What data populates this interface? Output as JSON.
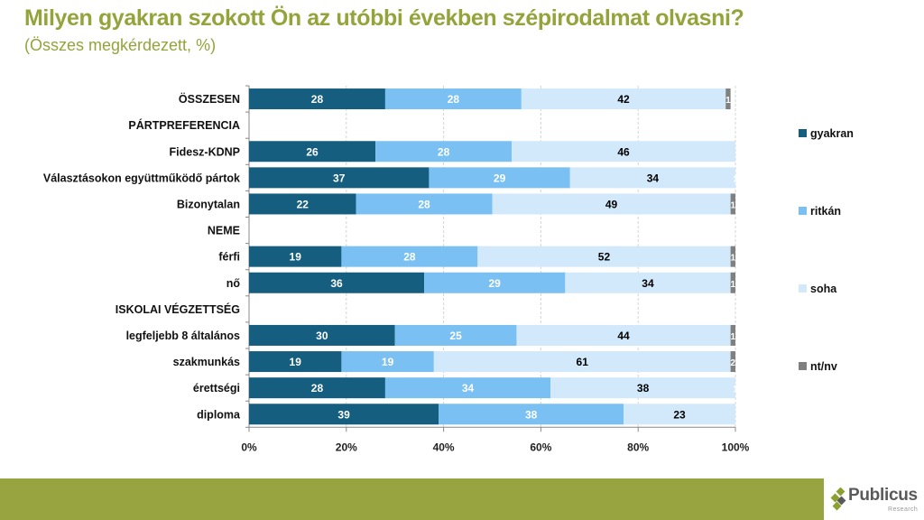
{
  "header": {
    "title": "Milyen gyakran szokott Ön az utóbbi években szépirodalmat olvasni?",
    "subtitle": "(Összes megkérdezett, %)"
  },
  "colors": {
    "title": "#95a33b",
    "footer": "#98a43f",
    "gyakran": "#165e80",
    "ritkan": "#7ac0f2",
    "soha": "#d2e9fb",
    "ntnv": "#808080"
  },
  "chart_data": {
    "type": "bar",
    "orientation": "horizontal",
    "stacked": "percent",
    "title": "Milyen gyakran szokott Ön az utóbbi években szépirodalmat olvasni?",
    "subtitle": "(Összes megkérdezett, %)",
    "xlabel": "",
    "ylabel": "",
    "xlim": [
      0,
      100
    ],
    "xticks": [
      "0%",
      "20%",
      "40%",
      "60%",
      "80%",
      "100%"
    ],
    "grid": "vertical dashed",
    "legend_position": "right",
    "categories": [
      "ÖSSZESEN",
      "PÁRTPREFERENCIA",
      "Fidesz-KDNP",
      "Választásokon együttműködő pártok",
      "Bizonytalan",
      "NEME",
      "férfi",
      "nő",
      "ISKOLAI VÉGZETTSÉG",
      "legfeljebb 8 általános",
      "szakmunkás",
      "érettségi",
      "diploma"
    ],
    "series": [
      {
        "name": "gyakran",
        "color": "#165e80",
        "label_color": "#ffffff",
        "values": [
          28,
          null,
          26,
          37,
          22,
          null,
          19,
          36,
          null,
          30,
          19,
          28,
          39
        ]
      },
      {
        "name": "ritkán",
        "color": "#7ac0f2",
        "label_color": "#ffffff",
        "values": [
          28,
          null,
          28,
          29,
          28,
          null,
          28,
          29,
          null,
          25,
          19,
          34,
          38
        ]
      },
      {
        "name": "soha",
        "color": "#d2e9fb",
        "label_color": "#000000",
        "values": [
          42,
          null,
          46,
          34,
          49,
          null,
          52,
          34,
          null,
          44,
          61,
          38,
          23
        ]
      },
      {
        "name": "nt/nv",
        "color": "#808080",
        "label_color": "#ffffff",
        "values": [
          1,
          null,
          null,
          1,
          1,
          null,
          1,
          1,
          null,
          1,
          2,
          1,
          null
        ]
      }
    ]
  },
  "footer": {
    "logo_name": "Publicus",
    "logo_sub": "Research"
  }
}
